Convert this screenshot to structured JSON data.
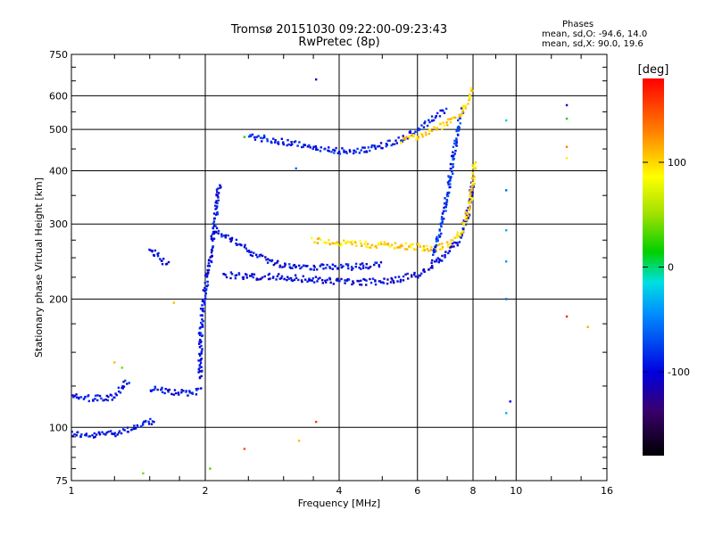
{
  "chart_data": {
    "type": "scatter",
    "title": "Tromsø 20151030 09:22:00-09:23:43",
    "subtitle": "RwPretec (8p)",
    "xlabel": "Frequency [MHz]",
    "ylabel": "Stationary phase Virtual Height [km]",
    "x_scale": "log",
    "y_scale": "log",
    "xlim": [
      1,
      16
    ],
    "ylim": [
      75,
      750
    ],
    "x_ticks": [
      1,
      2,
      4,
      6,
      8,
      10,
      16
    ],
    "x_tick_labels": [
      "1",
      "2",
      "4",
      "6",
      "8",
      "10",
      "16"
    ],
    "y_ticks": [
      75,
      100,
      200,
      300,
      400,
      500,
      600,
      750
    ],
    "y_tick_labels": [
      "75",
      "100",
      "200",
      "300",
      "400",
      "500",
      "600",
      "750"
    ],
    "grid": true,
    "stats": {
      "title": "Phases",
      "o_line": "mean, sd,O: -94.6, 14.0",
      "x_line": "mean, sd,X:  90.0, 19.6"
    },
    "colorbar": {
      "label": "[deg]",
      "range": [
        -180,
        180
      ],
      "ticks": [
        -100,
        0,
        100
      ],
      "tick_labels": [
        "-100",
        "0",
        "100"
      ]
    },
    "traces": [
      {
        "phase": -95,
        "points": [
          [
            1.0,
            97
          ],
          [
            1.05,
            96
          ],
          [
            1.1,
            95
          ],
          [
            1.15,
            96
          ],
          [
            1.2,
            97
          ],
          [
            1.25,
            97
          ],
          [
            1.3,
            98
          ],
          [
            1.35,
            99
          ],
          [
            1.4,
            100
          ],
          [
            1.45,
            101
          ],
          [
            1.5,
            103
          ],
          [
            1.55,
            104
          ]
        ]
      },
      {
        "phase": -95,
        "points": [
          [
            1.0,
            118
          ],
          [
            1.05,
            117
          ],
          [
            1.1,
            117
          ],
          [
            1.2,
            117
          ],
          [
            1.25,
            118
          ],
          [
            1.3,
            125
          ],
          [
            1.35,
            128
          ]
        ]
      },
      {
        "phase": -95,
        "points": [
          [
            1.5,
            123
          ],
          [
            1.6,
            122
          ],
          [
            1.7,
            121
          ],
          [
            1.8,
            120
          ],
          [
            1.85,
            120
          ],
          [
            1.9,
            121
          ],
          [
            1.95,
            124
          ]
        ]
      },
      {
        "phase": -95,
        "points": [
          [
            1.5,
            264
          ],
          [
            1.55,
            255
          ],
          [
            1.6,
            248
          ],
          [
            1.65,
            240
          ]
        ]
      },
      {
        "phase": -95,
        "points": [
          [
            1.95,
            130
          ],
          [
            1.95,
            160
          ],
          [
            1.97,
            190
          ],
          [
            2.0,
            210
          ],
          [
            2.03,
            230
          ],
          [
            2.07,
            260
          ],
          [
            2.1,
            300
          ],
          [
            2.13,
            340
          ],
          [
            2.15,
            375
          ]
        ]
      },
      {
        "phase": -95,
        "points": [
          [
            2.1,
            290
          ],
          [
            2.3,
            275
          ],
          [
            2.5,
            260
          ],
          [
            2.8,
            245
          ],
          [
            3.0,
            240
          ],
          [
            3.5,
            238
          ],
          [
            4.0,
            237
          ],
          [
            5.0,
            240
          ]
        ]
      },
      {
        "phase": -100,
        "points": [
          [
            2.2,
            228
          ],
          [
            2.5,
            226
          ],
          [
            3.0,
            225
          ],
          [
            3.5,
            222
          ],
          [
            4.0,
            220
          ],
          [
            4.5,
            219
          ],
          [
            5.0,
            220
          ],
          [
            5.5,
            223
          ],
          [
            6.0,
            228
          ],
          [
            6.5,
            240
          ],
          [
            7.0,
            255
          ],
          [
            7.5,
            280
          ],
          [
            7.8,
            320
          ],
          [
            8.0,
            380
          ]
        ]
      },
      {
        "phase": 100,
        "points": [
          [
            3.5,
            275
          ],
          [
            4.0,
            270
          ],
          [
            5.0,
            268
          ],
          [
            6.0,
            265
          ],
          [
            6.5,
            262
          ],
          [
            7.0,
            268
          ],
          [
            7.5,
            285
          ],
          [
            7.8,
            320
          ],
          [
            8.0,
            370
          ],
          [
            8.05,
            420
          ]
        ]
      },
      {
        "phase": -90,
        "points": [
          [
            2.5,
            482
          ],
          [
            3.0,
            468
          ],
          [
            3.5,
            455
          ],
          [
            4.0,
            445
          ],
          [
            4.5,
            446
          ],
          [
            5.0,
            458
          ],
          [
            5.5,
            475
          ],
          [
            6.0,
            500
          ],
          [
            6.5,
            530
          ],
          [
            7.0,
            560
          ]
        ]
      },
      {
        "phase": -80,
        "points": [
          [
            6.5,
            250
          ],
          [
            6.8,
            300
          ],
          [
            7.0,
            350
          ],
          [
            7.2,
            420
          ],
          [
            7.4,
            500
          ],
          [
            7.6,
            560
          ]
        ]
      },
      {
        "phase": 100,
        "points": [
          [
            5.5,
            470
          ],
          [
            6.0,
            480
          ],
          [
            6.5,
            500
          ],
          [
            7.0,
            520
          ],
          [
            7.5,
            540
          ],
          [
            8.0,
            620
          ]
        ]
      }
    ],
    "scatter_points": [
      [
        3.55,
        655,
        -100
      ],
      [
        13.0,
        570,
        -100
      ],
      [
        13.0,
        530,
        20
      ],
      [
        13.0,
        455,
        130
      ],
      [
        13.0,
        428,
        80
      ],
      [
        9.5,
        525,
        -20
      ],
      [
        9.5,
        360,
        -60
      ],
      [
        9.5,
        290,
        -30
      ],
      [
        9.5,
        245,
        -40
      ],
      [
        9.5,
        200,
        -60
      ],
      [
        9.7,
        115,
        -100
      ],
      [
        9.5,
        108,
        -30
      ],
      [
        13.0,
        182,
        165
      ],
      [
        14.5,
        172,
        115
      ],
      [
        1.7,
        196,
        110
      ],
      [
        2.05,
        80,
        30
      ],
      [
        2.45,
        89,
        150
      ],
      [
        3.25,
        93,
        110
      ],
      [
        3.55,
        103,
        160
      ],
      [
        1.45,
        78,
        40
      ],
      [
        1.25,
        142,
        110
      ],
      [
        1.3,
        138,
        40
      ],
      [
        3.2,
        405,
        -60
      ],
      [
        2.45,
        480,
        20
      ]
    ]
  }
}
